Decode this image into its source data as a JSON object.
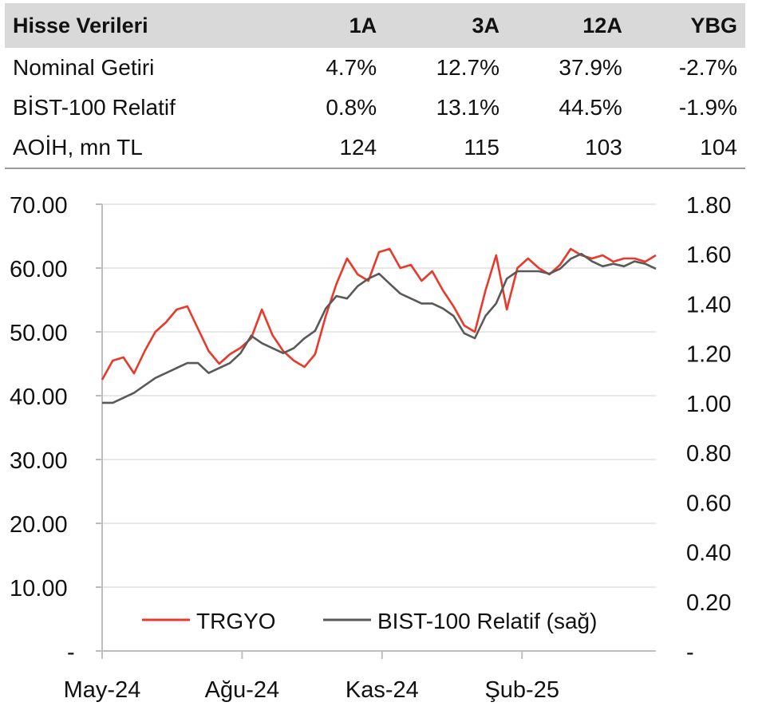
{
  "table": {
    "headers": [
      "Hisse Verileri",
      "1A",
      "3A",
      "12A",
      "YBG"
    ],
    "rows": [
      [
        "Nominal Getiri",
        "4.7%",
        "12.7%",
        "37.9%",
        "-2.7%"
      ],
      [
        "BİST-100 Relatif",
        "0.8%",
        "13.1%",
        "44.5%",
        "-1.9%"
      ],
      [
        "AOİH, mn TL",
        "124",
        "115",
        "103",
        "104"
      ]
    ]
  },
  "chart_data": {
    "type": "line",
    "x_ticks": [
      "May-24",
      "Ağu-24",
      "Kas-24",
      "Şub-25"
    ],
    "y_left_ticks": [
      "70.00",
      "60.00",
      "50.00",
      "40.00",
      "30.00",
      "20.00",
      "10.00",
      "-"
    ],
    "y_right_ticks": [
      "1.80",
      "1.60",
      "1.40",
      "1.20",
      "1.00",
      "0.80",
      "0.60",
      "0.40",
      "0.20",
      "-"
    ],
    "y_left_range": [
      0,
      70
    ],
    "y_right_range": [
      0,
      1.8
    ],
    "legend_position": "bottom-center",
    "grid": "horizontal",
    "series": [
      {
        "name": "TRGYO",
        "axis": "left",
        "color": "#e8392b",
        "x": [
          "2024-05-01",
          "2024-05-08",
          "2024-05-15",
          "2024-05-22",
          "2024-05-29",
          "2024-06-05",
          "2024-06-12",
          "2024-06-19",
          "2024-06-26",
          "2024-07-03",
          "2024-07-10",
          "2024-07-17",
          "2024-07-24",
          "2024-07-31",
          "2024-08-07",
          "2024-08-14",
          "2024-08-21",
          "2024-08-28",
          "2024-09-04",
          "2024-09-11",
          "2024-09-18",
          "2024-09-25",
          "2024-10-02",
          "2024-10-09",
          "2024-10-16",
          "2024-10-23",
          "2024-10-30",
          "2024-11-06",
          "2024-11-13",
          "2024-11-20",
          "2024-11-27",
          "2024-12-04",
          "2024-12-11",
          "2024-12-18",
          "2024-12-25",
          "2025-01-01",
          "2025-01-08",
          "2025-01-15",
          "2025-01-22",
          "2025-01-29",
          "2025-02-05",
          "2025-02-12",
          "2025-02-19",
          "2025-02-26",
          "2025-03-05",
          "2025-03-12",
          "2025-03-19",
          "2025-03-26",
          "2025-04-02",
          "2025-04-09",
          "2025-04-16",
          "2025-04-23",
          "2025-04-30"
        ],
        "values": [
          42.5,
          45.5,
          46.0,
          43.5,
          47.0,
          50.0,
          51.5,
          53.5,
          54.0,
          50.5,
          47.0,
          45.0,
          46.5,
          47.5,
          49.0,
          53.5,
          49.5,
          47.0,
          45.5,
          44.5,
          46.5,
          52.5,
          57.5,
          61.5,
          59.0,
          58.0,
          62.5,
          63.0,
          60.0,
          60.5,
          58.0,
          59.5,
          56.5,
          54.0,
          51.0,
          50.0,
          56.5,
          62.0,
          53.5,
          60.0,
          61.5,
          60.0,
          59.0,
          60.5,
          63.0,
          62.0,
          61.5,
          62.0,
          61.0,
          61.5,
          61.5,
          61.0,
          62.0
        ]
      },
      {
        "name": "BIST-100 Relatif (sağ)",
        "axis": "right",
        "color": "#595959",
        "x": [
          "2024-05-01",
          "2024-05-08",
          "2024-05-15",
          "2024-05-22",
          "2024-05-29",
          "2024-06-05",
          "2024-06-12",
          "2024-06-19",
          "2024-06-26",
          "2024-07-03",
          "2024-07-10",
          "2024-07-17",
          "2024-07-24",
          "2024-07-31",
          "2024-08-07",
          "2024-08-14",
          "2024-08-21",
          "2024-08-28",
          "2024-09-04",
          "2024-09-11",
          "2024-09-18",
          "2024-09-25",
          "2024-10-02",
          "2024-10-09",
          "2024-10-16",
          "2024-10-23",
          "2024-10-30",
          "2024-11-06",
          "2024-11-13",
          "2024-11-20",
          "2024-11-27",
          "2024-12-04",
          "2024-12-11",
          "2024-12-18",
          "2024-12-25",
          "2025-01-01",
          "2025-01-08",
          "2025-01-15",
          "2025-01-22",
          "2025-01-29",
          "2025-02-05",
          "2025-02-12",
          "2025-02-19",
          "2025-02-26",
          "2025-03-05",
          "2025-03-12",
          "2025-03-19",
          "2025-03-26",
          "2025-04-02",
          "2025-04-09",
          "2025-04-16",
          "2025-04-23",
          "2025-04-30"
        ],
        "values": [
          1.0,
          1.0,
          1.02,
          1.04,
          1.07,
          1.1,
          1.12,
          1.14,
          1.16,
          1.16,
          1.12,
          1.14,
          1.16,
          1.2,
          1.27,
          1.24,
          1.22,
          1.2,
          1.22,
          1.26,
          1.29,
          1.38,
          1.43,
          1.42,
          1.47,
          1.5,
          1.52,
          1.48,
          1.44,
          1.42,
          1.4,
          1.4,
          1.38,
          1.35,
          1.28,
          1.26,
          1.35,
          1.4,
          1.5,
          1.53,
          1.53,
          1.53,
          1.52,
          1.54,
          1.58,
          1.6,
          1.57,
          1.55,
          1.56,
          1.55,
          1.57,
          1.56,
          1.54
        ]
      }
    ]
  }
}
